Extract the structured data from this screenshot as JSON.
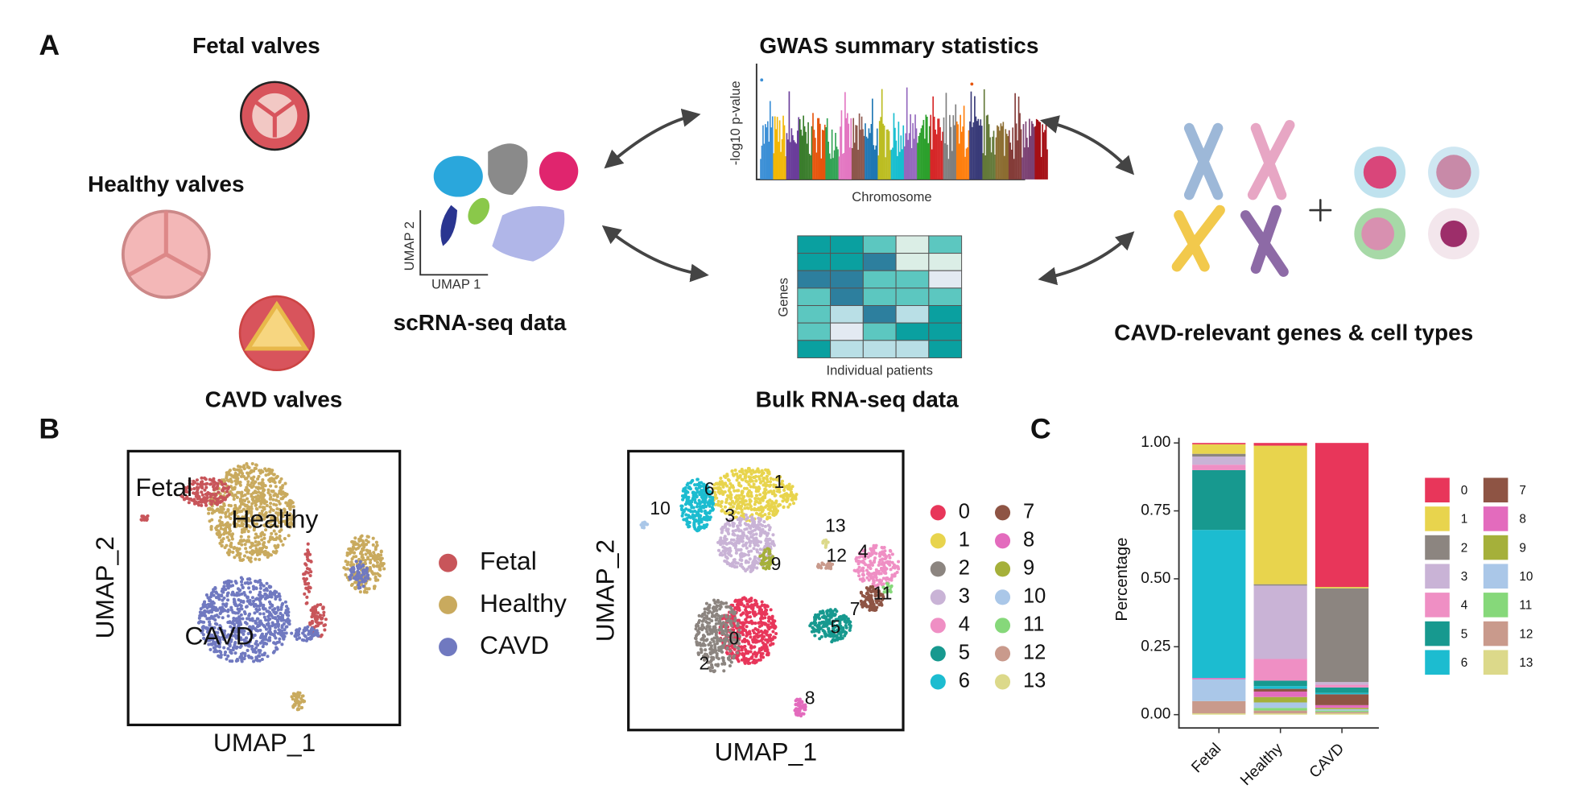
{
  "panel_a": {
    "label": "A",
    "valves": [
      "Fetal valves",
      "Healthy valves",
      "CAVD valves"
    ],
    "scrna": {
      "title": "scRNA-seq data",
      "x_axis": "UMAP 1",
      "y_axis": "UMAP 2"
    },
    "gwas": {
      "title": "GWAS summary statistics",
      "y_axis": "-log10 p-value",
      "x_axis": "Chromosome"
    },
    "bulk": {
      "title": "Bulk RNA-seq data",
      "y_axis": "Genes",
      "x_axis": "Individual patients"
    },
    "output": "CAVD-relevant genes & cell types"
  },
  "panel_b": {
    "label": "B",
    "umap_condition": {
      "x_axis": "UMAP_1",
      "y_axis": "UMAP_2",
      "groups": [
        {
          "name": "Fetal",
          "color": "#c8555a"
        },
        {
          "name": "Healthy",
          "color": "#c9aa5e"
        },
        {
          "name": "CAVD",
          "color": "#7079c0"
        }
      ]
    },
    "umap_cluster": {
      "x_axis": "UMAP_1",
      "y_axis": "UMAP_2"
    }
  },
  "chart_data": {
    "type": "stacked_bar",
    "panel_label": "C",
    "y_label": "Percentage",
    "categories": [
      "Fetal",
      "Healthy",
      "CAVD"
    ],
    "ylim": [
      0,
      1
    ],
    "yticks": [
      {
        "value": 0,
        "label": "0.00"
      },
      {
        "value": 0.25,
        "label": "0.25"
      },
      {
        "value": 0.5,
        "label": "0.50"
      },
      {
        "value": 0.75,
        "label": "0.75"
      },
      {
        "value": 1,
        "label": "1.00"
      }
    ],
    "series": [
      {
        "name": "0",
        "color": "#e8365a",
        "values": [
          0.005,
          0.01,
          0.53
        ]
      },
      {
        "name": "1",
        "color": "#e8d44d",
        "values": [
          0.035,
          0.51,
          0.005
        ]
      },
      {
        "name": "2",
        "color": "#8c8580",
        "values": [
          0.01,
          0.005,
          0.345
        ]
      },
      {
        "name": "3",
        "color": "#c9b3d6",
        "values": [
          0.03,
          0.27,
          0.01
        ]
      },
      {
        "name": "4",
        "color": "#ef8fc4",
        "values": [
          0.02,
          0.08,
          0.01
        ]
      },
      {
        "name": "5",
        "color": "#17998f",
        "values": [
          0.22,
          0.02,
          0.02
        ]
      },
      {
        "name": "6",
        "color": "#1cbcd0",
        "values": [
          0.545,
          0.01,
          0.005
        ]
      },
      {
        "name": "7",
        "color": "#8e5444",
        "values": [
          0,
          0.01,
          0.04
        ]
      },
      {
        "name": "8",
        "color": "#e36bbd",
        "values": [
          0.005,
          0.02,
          0.01
        ]
      },
      {
        "name": "9",
        "color": "#a5b03a",
        "values": [
          0,
          0.02,
          0.005
        ]
      },
      {
        "name": "10",
        "color": "#aac7e8",
        "values": [
          0.08,
          0.02,
          0.005
        ]
      },
      {
        "name": "11",
        "color": "#86d87a",
        "values": [
          0,
          0.01,
          0.005
        ]
      },
      {
        "name": "12",
        "color": "#c99a8c",
        "values": [
          0.045,
          0.01,
          0.005
        ]
      },
      {
        "name": "13",
        "color": "#dcd98a",
        "values": [
          0.005,
          0.005,
          0.005
        ]
      }
    ]
  }
}
